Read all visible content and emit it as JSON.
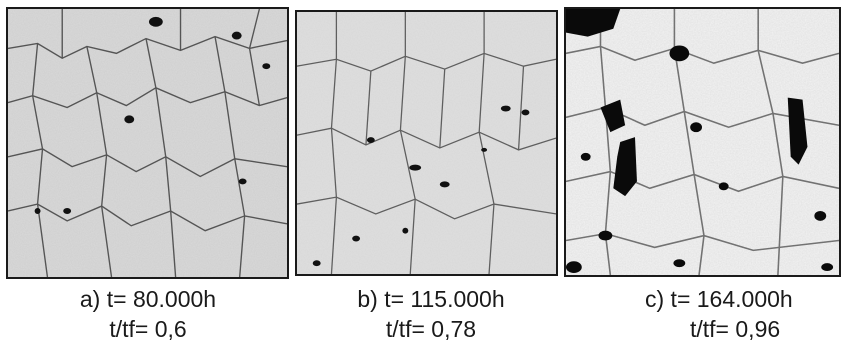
{
  "figure": {
    "panels": [
      {
        "caption_line1": "a) t= 80.000h",
        "caption_line2": "t/tf= 0,6"
      },
      {
        "caption_line1": "b) t= 115.000h",
        "caption_line2": "t/tf= 0,78"
      },
      {
        "caption_line1": "c) t= 164.000h",
        "caption_line2": "t/tf= 0,96"
      }
    ]
  }
}
